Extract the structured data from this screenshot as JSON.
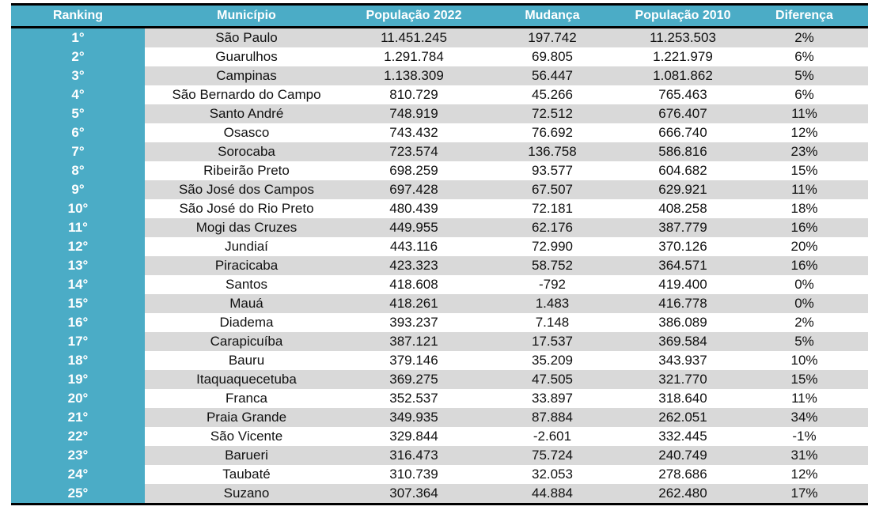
{
  "headers": [
    "Ranking",
    "Município",
    "População 2022",
    "Mudança",
    "População 2010",
    "Diferença"
  ],
  "rows": [
    [
      "1°",
      "São Paulo",
      "11.451.245",
      "197.742",
      "11.253.503",
      "2%"
    ],
    [
      "2°",
      "Guarulhos",
      "1.291.784",
      "69.805",
      "1.221.979",
      "6%"
    ],
    [
      "3°",
      "Campinas",
      "1.138.309",
      "56.447",
      "1.081.862",
      "5%"
    ],
    [
      "4°",
      "São Bernardo do Campo",
      "810.729",
      "45.266",
      "765.463",
      "6%"
    ],
    [
      "5°",
      "Santo André",
      "748.919",
      "72.512",
      "676.407",
      "11%"
    ],
    [
      "6°",
      "Osasco",
      "743.432",
      "76.692",
      "666.740",
      "12%"
    ],
    [
      "7°",
      "Sorocaba",
      "723.574",
      "136.758",
      "586.816",
      "23%"
    ],
    [
      "8°",
      "Ribeirão Preto",
      "698.259",
      "93.577",
      "604.682",
      "15%"
    ],
    [
      "9°",
      "São José dos Campos",
      "697.428",
      "67.507",
      "629.921",
      "11%"
    ],
    [
      "10°",
      "São José do Rio Preto",
      "480.439",
      "72.181",
      "408.258",
      "18%"
    ],
    [
      "11°",
      "Mogi das Cruzes",
      "449.955",
      "62.176",
      "387.779",
      "16%"
    ],
    [
      "12°",
      "Jundiaí",
      "443.116",
      "72.990",
      "370.126",
      "20%"
    ],
    [
      "13°",
      "Piracicaba",
      "423.323",
      "58.752",
      "364.571",
      "16%"
    ],
    [
      "14°",
      "Santos",
      "418.608",
      "-792",
      "419.400",
      "0%"
    ],
    [
      "15°",
      "Mauá",
      "418.261",
      "1.483",
      "416.778",
      "0%"
    ],
    [
      "16°",
      "Diadema",
      "393.237",
      "7.148",
      "386.089",
      "2%"
    ],
    [
      "17°",
      "Carapicuíba",
      "387.121",
      "17.537",
      "369.584",
      "5%"
    ],
    [
      "18°",
      "Bauru",
      "379.146",
      "35.209",
      "343.937",
      "10%"
    ],
    [
      "19°",
      "Itaquaquecetuba",
      "369.275",
      "47.505",
      "321.770",
      "15%"
    ],
    [
      "20°",
      "Franca",
      "352.537",
      "33.897",
      "318.640",
      "11%"
    ],
    [
      "21°",
      "Praia Grande",
      "349.935",
      "87.884",
      "262.051",
      "34%"
    ],
    [
      "22°",
      "São Vicente",
      "329.844",
      "-2.601",
      "332.445",
      "-1%"
    ],
    [
      "23°",
      "Barueri",
      "316.473",
      "75.724",
      "240.749",
      "31%"
    ],
    [
      "24°",
      "Taubaté",
      "310.739",
      "32.053",
      "278.686",
      "12%"
    ],
    [
      "25°",
      "Suzano",
      "307.364",
      "44.884",
      "262.480",
      "17%"
    ]
  ]
}
